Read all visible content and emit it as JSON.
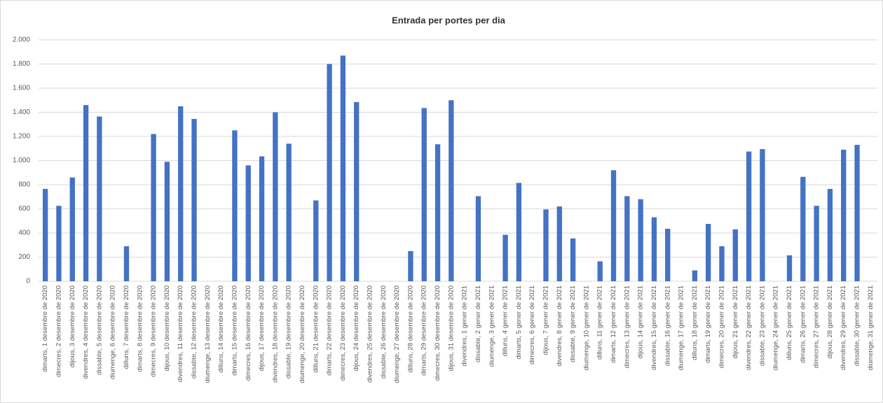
{
  "chart_data": {
    "type": "bar",
    "title": "Entrada per portes per dia",
    "categories": [
      "dimarts, 1 desembre de 2020",
      "dimecres, 2 desembre de 2020",
      "dijous, 3 desembre de 2020",
      "divendres, 4 desembre de 2020",
      "dissabte, 5 desembre de 2020",
      "diumenge, 6 desembre de 2020",
      "dilluns, 7 desembre de 2020",
      "dimarts, 8 desembre de 2020",
      "dimecres, 9 desembre de 2020",
      "dijous, 10 desembre de 2020",
      "divendres, 11 desembre de 2020",
      "dissabte, 12 desembre de 2020",
      "diumenge, 13 desembre de 2020",
      "dilluns, 14 desembre de 2020",
      "dimarts, 15 desembre de 2020",
      "dimecres, 16 desembre de 2020",
      "dijous, 17 desembre de 2020",
      "divendres, 18 desembre de 2020",
      "dissabte, 19 desembre de 2020",
      "diumenge, 20 desembre de 2020",
      "dilluns, 21 desembre de 2020",
      "dimarts, 22 desembre de 2020",
      "dimecres, 23 desembre de 2020",
      "dijous, 24 desembre de 2020",
      "divendres, 25 desembre de 2020",
      "dissabte, 26 desembre de 2020",
      "diumenge, 27 desembre de 2020",
      "dilluns, 28 desembre de 2020",
      "dimarts, 29 desembre de 2020",
      "dimecres, 30 desembre de 2020",
      "dijous, 31 desembre de 2020",
      "divendres, 1 gener de 2021",
      "dissabte, 2 gener de 2021",
      "diumenge, 3 gener de 2021",
      "dilluns, 4 gener de 2021",
      "dimarts, 5 gener de 2021",
      "dimecres, 6 gener de 2021",
      "dijous, 7 gener de 2021",
      "divendres, 8 gener de 2021",
      "dissabte, 9 gener de 2021",
      "diumenge, 10 gener de 2021",
      "dilluns, 11 gener de 2021",
      "dimarts, 12 gener de 2021",
      "dimecres, 13 gener de 2021",
      "dijous, 14 gener de 2021",
      "divendres, 15 gener de 2021",
      "dissabte, 16 gener de 2021",
      "diumenge, 17 gener de 2021",
      "dilluns, 18 gener de 2021",
      "dimarts, 19 gener de 2021",
      "dimecres, 20 gener de 2021",
      "dijous, 21 gener de 2021",
      "divendres, 22 gener de 2021",
      "dissabte, 23 gener de 2021",
      "diumenge, 24 gener de 2021",
      "dilluns, 25 gener de 2021",
      "dimarts, 26 gener de 2021",
      "dimecres, 27 gener de 2021",
      "dijous, 28 gener de 2021",
      "divendres, 29 gener de 2021",
      "dissabte, 30 gener de 2021",
      "diumenge, 31 gener de 2021"
    ],
    "values": [
      765,
      625,
      860,
      1460,
      1365,
      0,
      290,
      0,
      1220,
      990,
      1450,
      1345,
      0,
      0,
      1250,
      960,
      1035,
      1400,
      1140,
      0,
      670,
      1800,
      1870,
      1485,
      0,
      0,
      0,
      250,
      1435,
      1135,
      1500,
      0,
      705,
      0,
      385,
      815,
      0,
      595,
      620,
      355,
      0,
      165,
      920,
      705,
      680,
      530,
      435,
      0,
      90,
      475,
      290,
      430,
      1075,
      1095,
      0,
      215,
      865,
      625,
      765,
      1090,
      1130,
      0
    ],
    "color": "#4472c4",
    "ylim": [
      0,
      2000
    ],
    "yticks": [
      0,
      200,
      400,
      600,
      800,
      {
        "value": 1000,
        "label": "1.000"
      },
      {
        "value": 1200,
        "label": "1.200"
      },
      {
        "value": 1400,
        "label": "1.400"
      },
      {
        "value": 1600,
        "label": "1.600"
      },
      {
        "value": 1800,
        "label": "1.800"
      },
      {
        "value": 2000,
        "label": "2.000"
      }
    ],
    "grid": true
  }
}
